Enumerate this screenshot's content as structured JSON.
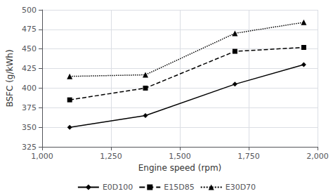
{
  "chart_data": {
    "type": "line",
    "xlabel": "Engine speed (rpm)",
    "ylabel": "BSFC (g/kWh)",
    "x": [
      1100,
      1375,
      1700,
      1950
    ],
    "series": [
      {
        "name": "E0D100",
        "color": "#000000",
        "marker": "diamond",
        "line_style": "solid",
        "values": [
          350,
          365,
          405,
          430
        ]
      },
      {
        "name": "E15D85",
        "color": "#000000",
        "marker": "square",
        "line_style": "dashed",
        "values": [
          385,
          400,
          447,
          452
        ]
      },
      {
        "name": "E30D70",
        "color": "#000000",
        "marker": "triangle",
        "line_style": "dotted",
        "values": [
          415,
          417,
          470,
          484
        ]
      }
    ],
    "xlim": [
      1000,
      2000
    ],
    "ylim": [
      325,
      500
    ],
    "xticks": [
      1000,
      1250,
      1500,
      1750,
      2000
    ],
    "yticks": [
      325,
      350,
      375,
      400,
      425,
      450,
      475,
      500
    ],
    "grid": true,
    "legend": "bottom"
  }
}
